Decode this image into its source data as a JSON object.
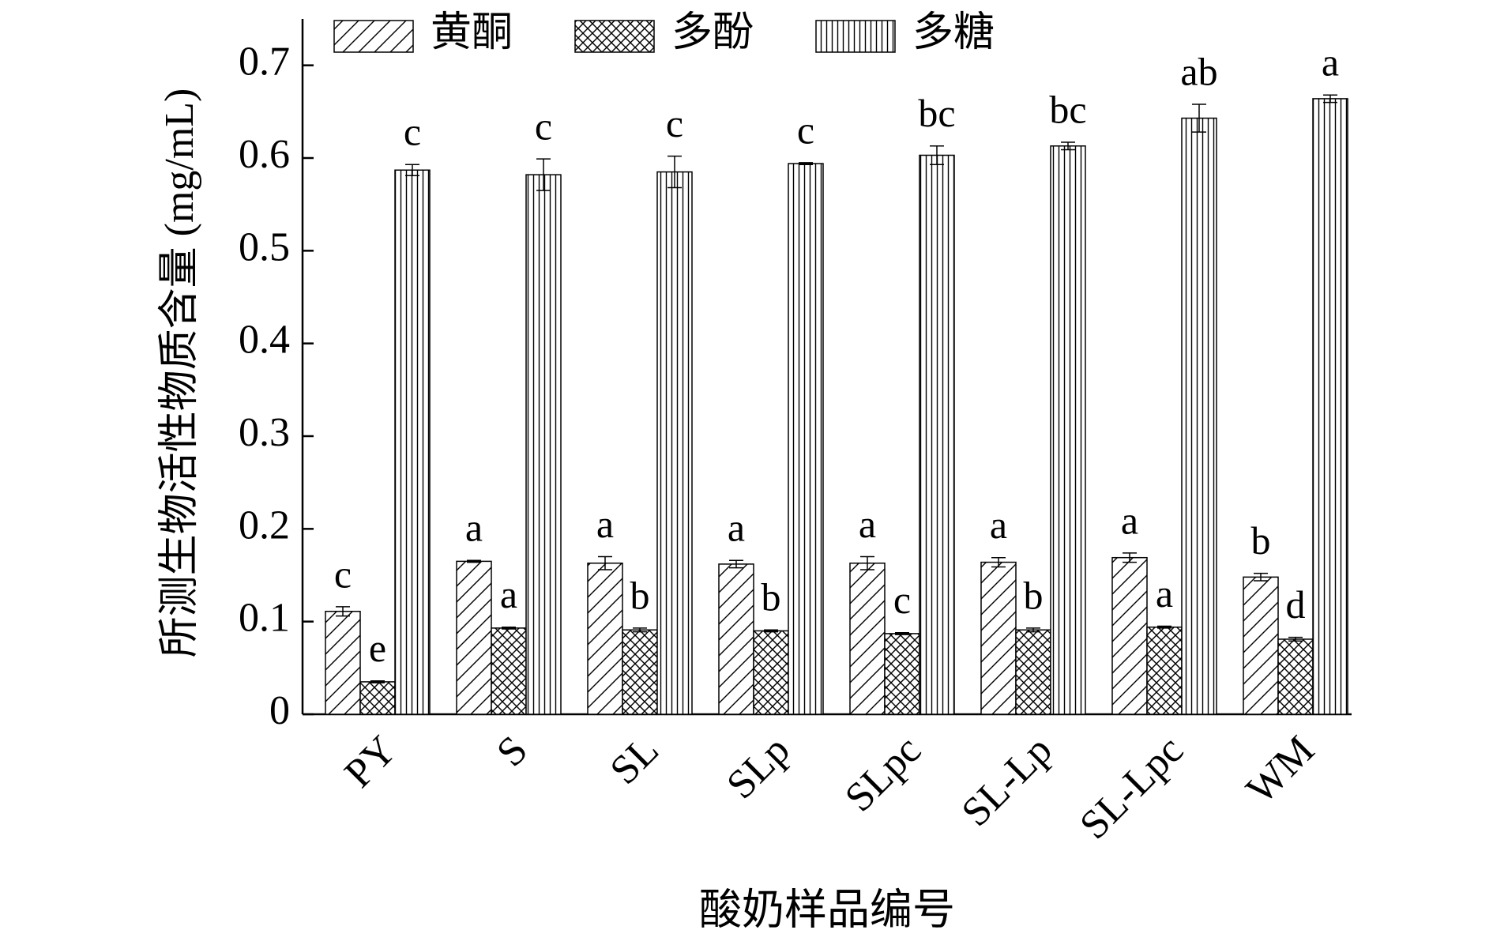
{
  "chart_data": {
    "type": "bar",
    "x_label": "酸奶样品编号",
    "y_label": "所测生物活性物质含量 (mg/mL)",
    "categories": [
      "PY",
      "S",
      "SL",
      "SLp",
      "SLpc",
      "SL-Lp",
      "SL-Lpc",
      "WM"
    ],
    "series": [
      {
        "name": "黄酮",
        "color": "#000000",
        "pattern": "diagonal",
        "values": [
          0.111,
          0.165,
          0.163,
          0.162,
          0.163,
          0.164,
          0.169,
          0.148
        ],
        "errors": [
          0.005,
          0.001,
          0.007,
          0.004,
          0.007,
          0.005,
          0.005,
          0.004
        ],
        "letters": [
          "c",
          "a",
          "a",
          "a",
          "a",
          "a",
          "a",
          "b"
        ]
      },
      {
        "name": "多酚",
        "color": "#000000",
        "pattern": "crosshatch",
        "values": [
          0.035,
          0.093,
          0.091,
          0.09,
          0.087,
          0.091,
          0.094,
          0.081
        ],
        "errors": [
          0.001,
          0.001,
          0.002,
          0.001,
          0.001,
          0.002,
          0.001,
          0.002
        ],
        "letters": [
          "e",
          "a",
          "b",
          "b",
          "c",
          "b",
          "a",
          "d"
        ]
      },
      {
        "name": "多糖",
        "color": "#000000",
        "pattern": "vertical",
        "values": [
          0.587,
          0.582,
          0.585,
          0.594,
          0.603,
          0.613,
          0.643,
          0.664
        ],
        "errors": [
          0.006,
          0.017,
          0.017,
          0.001,
          0.01,
          0.004,
          0.015,
          0.004
        ],
        "letters": [
          "c",
          "c",
          "c",
          "c",
          "bc",
          "bc",
          "ab",
          "a"
        ]
      }
    ],
    "ylim": [
      0,
      0.75
    ],
    "yticks": [
      0,
      0.1,
      0.2,
      0.3,
      0.4,
      0.5,
      0.6,
      0.7
    ],
    "legend": "top-left"
  }
}
